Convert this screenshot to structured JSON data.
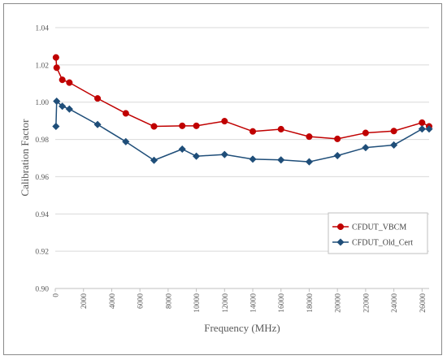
{
  "chart_data": {
    "type": "line",
    "xlabel": "Frequency (MHz)",
    "ylabel": "Calibration Factor",
    "xlim": [
      0,
      26500
    ],
    "ylim": [
      0.9,
      1.04
    ],
    "x_ticks": [
      0,
      2000,
      4000,
      6000,
      8000,
      10000,
      12000,
      14000,
      16000,
      18000,
      20000,
      22000,
      24000,
      26000
    ],
    "x_tick_labels": [
      "0",
      "2000",
      "4000",
      "6000",
      "8000",
      "10000",
      "12000",
      "14000",
      "16000",
      "18000",
      "20000",
      "22000",
      "24000",
      "26000"
    ],
    "y_ticks": [
      0.9,
      0.92,
      0.94,
      0.96,
      0.98,
      1.0,
      1.02,
      1.04
    ],
    "y_tick_labels": [
      "0.90",
      "0.92",
      "0.94",
      "0.96",
      "0.98",
      "1.00",
      "1.02",
      "1.04"
    ],
    "grid": "horizontal",
    "legend_position": "right",
    "series": [
      {
        "name": "CFDUT_VBCM",
        "color": "#c00000",
        "marker": "circle",
        "points": [
          [
            50,
            1.024
          ],
          [
            100,
            1.0185
          ],
          [
            500,
            1.012
          ],
          [
            1000,
            1.0105
          ],
          [
            3000,
            1.002
          ],
          [
            5000,
            0.994
          ],
          [
            7000,
            0.987
          ],
          [
            9000,
            0.9873
          ],
          [
            10000,
            0.9873
          ],
          [
            12000,
            0.9898
          ],
          [
            14000,
            0.9843
          ],
          [
            16000,
            0.9855
          ],
          [
            18000,
            0.9815
          ],
          [
            20000,
            0.9803
          ],
          [
            22000,
            0.9835
          ],
          [
            24000,
            0.9845
          ],
          [
            26000,
            0.989
          ],
          [
            26500,
            0.987
          ]
        ]
      },
      {
        "name": "CFDUT_Old_Cert",
        "color": "#1f4e79",
        "marker": "diamond",
        "points": [
          [
            50,
            0.987
          ],
          [
            100,
            1.0005
          ],
          [
            500,
            0.9978
          ],
          [
            1000,
            0.9963
          ],
          [
            3000,
            0.988
          ],
          [
            5000,
            0.9788
          ],
          [
            7000,
            0.9688
          ],
          [
            9000,
            0.9748
          ],
          [
            10000,
            0.971
          ],
          [
            12000,
            0.9719
          ],
          [
            14000,
            0.9694
          ],
          [
            16000,
            0.969
          ],
          [
            18000,
            0.968
          ],
          [
            20000,
            0.9713
          ],
          [
            22000,
            0.9756
          ],
          [
            24000,
            0.977
          ],
          [
            26000,
            0.9856
          ],
          [
            26500,
            0.9856
          ]
        ]
      }
    ]
  }
}
